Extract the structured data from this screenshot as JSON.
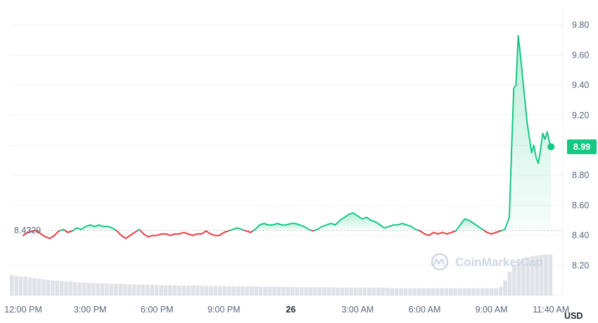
{
  "chart_data": {
    "type": "line",
    "currency_label": "USD",
    "watermark": "CoinMarketCap",
    "reference_value": 8.4329,
    "reference_label": "8.4329",
    "current_value": 8.99,
    "current_label": "8.99",
    "ylim": [
      8.0,
      9.92
    ],
    "y_ticks": [
      "9.80",
      "9.60",
      "9.40",
      "9.20",
      "9.00",
      "8.80",
      "8.60",
      "8.40",
      "8.20"
    ],
    "x_ticks": [
      {
        "label": "12:00 PM",
        "t": 0,
        "bold": false
      },
      {
        "label": "3:00 PM",
        "t": 3,
        "bold": false
      },
      {
        "label": "6:00 PM",
        "t": 6,
        "bold": false
      },
      {
        "label": "9:00 PM",
        "t": 9,
        "bold": false
      },
      {
        "label": "26",
        "t": 12,
        "bold": true
      },
      {
        "label": "3:00 AM",
        "t": 15,
        "bold": false
      },
      {
        "label": "6:00 AM",
        "t": 18,
        "bold": false
      },
      {
        "label": "9:00 AM",
        "t": 21,
        "bold": false
      },
      {
        "label": "11:40 AM",
        "t": 23.67,
        "bold": false
      }
    ],
    "xlim": [
      -0.6,
      24.2
    ],
    "colors": {
      "up": "#16c784",
      "down": "#ea3943",
      "grid": "#eff2f5",
      "volume": "#dfe3e8",
      "text": "#58667e"
    },
    "series": [
      {
        "points": [
          [
            0.0,
            8.4
          ],
          [
            0.2,
            8.42
          ],
          [
            0.4,
            8.43
          ],
          [
            0.6,
            8.43
          ],
          [
            0.8,
            8.41
          ],
          [
            1.0,
            8.39
          ],
          [
            1.2,
            8.38
          ],
          [
            1.4,
            8.4
          ],
          [
            1.6,
            8.43
          ],
          [
            1.8,
            8.44
          ],
          [
            2.0,
            8.42
          ],
          [
            2.2,
            8.43
          ],
          [
            2.4,
            8.45
          ],
          [
            2.6,
            8.44
          ],
          [
            2.8,
            8.46
          ],
          [
            3.0,
            8.47
          ],
          [
            3.2,
            8.46
          ],
          [
            3.4,
            8.47
          ],
          [
            3.6,
            8.46
          ],
          [
            3.8,
            8.46
          ],
          [
            4.0,
            8.45
          ],
          [
            4.2,
            8.43
          ],
          [
            4.4,
            8.4
          ],
          [
            4.6,
            8.38
          ],
          [
            4.8,
            8.4
          ],
          [
            5.0,
            8.42
          ],
          [
            5.2,
            8.44
          ],
          [
            5.4,
            8.41
          ],
          [
            5.6,
            8.39
          ],
          [
            5.8,
            8.4
          ],
          [
            6.0,
            8.4
          ],
          [
            6.2,
            8.41
          ],
          [
            6.4,
            8.41
          ],
          [
            6.6,
            8.4
          ],
          [
            6.8,
            8.41
          ],
          [
            7.0,
            8.41
          ],
          [
            7.2,
            8.42
          ],
          [
            7.4,
            8.41
          ],
          [
            7.6,
            8.4
          ],
          [
            7.8,
            8.41
          ],
          [
            8.0,
            8.41
          ],
          [
            8.2,
            8.43
          ],
          [
            8.4,
            8.41
          ],
          [
            8.6,
            8.4
          ],
          [
            8.8,
            8.4
          ],
          [
            9.0,
            8.42
          ],
          [
            9.2,
            8.43
          ],
          [
            9.4,
            8.44
          ],
          [
            9.6,
            8.45
          ],
          [
            9.8,
            8.44
          ],
          [
            10.0,
            8.43
          ],
          [
            10.2,
            8.42
          ],
          [
            10.4,
            8.44
          ],
          [
            10.6,
            8.47
          ],
          [
            10.8,
            8.48
          ],
          [
            11.0,
            8.47
          ],
          [
            11.2,
            8.47
          ],
          [
            11.4,
            8.48
          ],
          [
            11.6,
            8.47
          ],
          [
            11.8,
            8.47
          ],
          [
            12.0,
            8.48
          ],
          [
            12.2,
            8.48
          ],
          [
            12.4,
            8.47
          ],
          [
            12.6,
            8.46
          ],
          [
            12.8,
            8.44
          ],
          [
            13.0,
            8.43
          ],
          [
            13.2,
            8.44
          ],
          [
            13.4,
            8.46
          ],
          [
            13.6,
            8.47
          ],
          [
            13.8,
            8.48
          ],
          [
            14.0,
            8.47
          ],
          [
            14.2,
            8.5
          ],
          [
            14.4,
            8.52
          ],
          [
            14.6,
            8.54
          ],
          [
            14.8,
            8.55
          ],
          [
            15.0,
            8.53
          ],
          [
            15.2,
            8.51
          ],
          [
            15.4,
            8.52
          ],
          [
            15.6,
            8.5
          ],
          [
            15.8,
            8.49
          ],
          [
            16.0,
            8.47
          ],
          [
            16.2,
            8.45
          ],
          [
            16.4,
            8.46
          ],
          [
            16.6,
            8.47
          ],
          [
            16.8,
            8.47
          ],
          [
            17.0,
            8.48
          ],
          [
            17.2,
            8.47
          ],
          [
            17.4,
            8.46
          ],
          [
            17.6,
            8.44
          ],
          [
            17.8,
            8.43
          ],
          [
            18.0,
            8.41
          ],
          [
            18.2,
            8.4
          ],
          [
            18.4,
            8.42
          ],
          [
            18.6,
            8.41
          ],
          [
            18.8,
            8.42
          ],
          [
            19.0,
            8.41
          ],
          [
            19.2,
            8.42
          ],
          [
            19.4,
            8.43
          ],
          [
            19.6,
            8.47
          ],
          [
            19.8,
            8.51
          ],
          [
            20.0,
            8.5
          ],
          [
            20.2,
            8.48
          ],
          [
            20.4,
            8.46
          ],
          [
            20.6,
            8.44
          ],
          [
            20.8,
            8.42
          ],
          [
            21.0,
            8.41
          ],
          [
            21.2,
            8.42
          ],
          [
            21.4,
            8.43
          ],
          [
            21.6,
            8.44
          ],
          [
            21.8,
            8.52
          ],
          [
            21.9,
            8.96
          ],
          [
            22.0,
            9.38
          ],
          [
            22.1,
            9.4
          ],
          [
            22.2,
            9.73
          ],
          [
            22.3,
            9.6
          ],
          [
            22.4,
            9.45
          ],
          [
            22.5,
            9.3
          ],
          [
            22.6,
            9.15
          ],
          [
            22.7,
            9.05
          ],
          [
            22.8,
            8.95
          ],
          [
            22.9,
            9.0
          ],
          [
            23.0,
            8.92
          ],
          [
            23.1,
            8.88
          ],
          [
            23.2,
            8.97
          ],
          [
            23.3,
            9.08
          ],
          [
            23.4,
            9.04
          ],
          [
            23.5,
            9.09
          ],
          [
            23.6,
            9.02
          ],
          [
            23.67,
            8.99
          ]
        ]
      }
    ],
    "volume": [
      0.47,
      0.45,
      0.43,
      0.44,
      0.42,
      0.4,
      0.39,
      0.37,
      0.36,
      0.35,
      0.34,
      0.33,
      0.32,
      0.32,
      0.31,
      0.3,
      0.3,
      0.29,
      0.29,
      0.28,
      0.28,
      0.28,
      0.27,
      0.27,
      0.27,
      0.26,
      0.26,
      0.26,
      0.25,
      0.25,
      0.25,
      0.25,
      0.24,
      0.24,
      0.24,
      0.24,
      0.24,
      0.23,
      0.23,
      0.23,
      0.23,
      0.23,
      0.22,
      0.22,
      0.22,
      0.22,
      0.22,
      0.22,
      0.21,
      0.21,
      0.21,
      0.21,
      0.21,
      0.21,
      0.21,
      0.2,
      0.2,
      0.2,
      0.2,
      0.2,
      0.2,
      0.2,
      0.2,
      0.19,
      0.19,
      0.19,
      0.19,
      0.19,
      0.19,
      0.19,
      0.19,
      0.19,
      0.18,
      0.18,
      0.18,
      0.18,
      0.18,
      0.18,
      0.18,
      0.18,
      0.18,
      0.18,
      0.18,
      0.18,
      0.17,
      0.17,
      0.17,
      0.17,
      0.17,
      0.17,
      0.17,
      0.17,
      0.17,
      0.17,
      0.17,
      0.17,
      0.17,
      0.17,
      0.17,
      0.17,
      0.17,
      0.17,
      0.17,
      0.17,
      0.17,
      0.17,
      0.17,
      0.17,
      0.2,
      0.35,
      0.55,
      0.7,
      0.78,
      0.85,
      0.88,
      0.9,
      0.92,
      0.93,
      0.94,
      0.95
    ]
  }
}
